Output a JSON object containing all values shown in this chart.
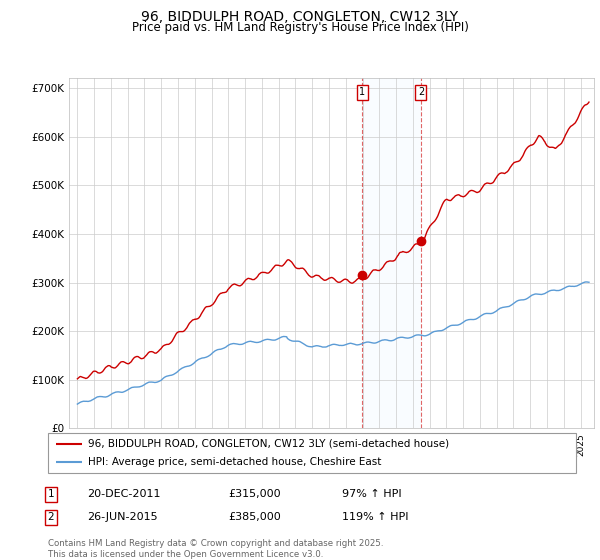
{
  "title": "96, BIDDULPH ROAD, CONGLETON, CW12 3LY",
  "subtitle": "Price paid vs. HM Land Registry's House Price Index (HPI)",
  "legend_line1": "96, BIDDULPH ROAD, CONGLETON, CW12 3LY (semi-detached house)",
  "legend_line2": "HPI: Average price, semi-detached house, Cheshire East",
  "footnote": "Contains HM Land Registry data © Crown copyright and database right 2025.\nThis data is licensed under the Open Government Licence v3.0.",
  "annotation1_label": "1",
  "annotation1_date": "20-DEC-2011",
  "annotation1_price": "£315,000",
  "annotation1_hpi": "97% ↑ HPI",
  "annotation2_label": "2",
  "annotation2_date": "26-JUN-2015",
  "annotation2_price": "£385,000",
  "annotation2_hpi": "119% ↑ HPI",
  "sale1_x": 2011.97,
  "sale1_y": 315000,
  "sale2_x": 2015.48,
  "sale2_y": 385000,
  "ylim_min": 0,
  "ylim_max": 720000,
  "xlim_min": 1994.5,
  "xlim_max": 2025.8,
  "yticks": [
    0,
    100000,
    200000,
    300000,
    400000,
    500000,
    600000,
    700000
  ],
  "ytick_labels": [
    "£0",
    "£100K",
    "£200K",
    "£300K",
    "£400K",
    "£500K",
    "£600K",
    "£700K"
  ],
  "hpi_color": "#5b9bd5",
  "price_color": "#cc0000",
  "background_color": "#ffffff",
  "grid_color": "#cccccc",
  "shade_color": "#ddeeff"
}
